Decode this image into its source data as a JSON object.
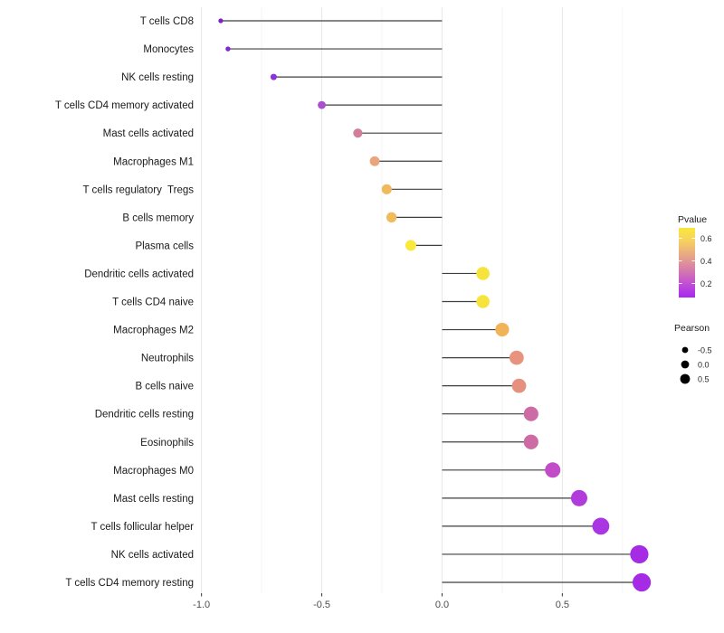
{
  "chart_data": {
    "type": "scatter",
    "variant": "lollipop",
    "title": "",
    "xlabel": "",
    "ylabel": "",
    "xlim": [
      -1.01,
      0.92
    ],
    "x_ticks": [
      -1.0,
      -0.5,
      0.0,
      0.5
    ],
    "x_tick_labels": [
      "-1.0",
      "-0.5",
      "0.0",
      "0.5"
    ],
    "minor_gridlines": [
      -0.75,
      -0.25,
      0.25,
      0.75
    ],
    "grid": "vertical-only",
    "background": "#ffffff",
    "stem_color": "#3f3f3f",
    "major_grid_color": "#e7e7e7",
    "minor_grid_color": "#f2f2f2",
    "axis_text_color": "#4d4d4d",
    "label_text_color": "#1a1a1a",
    "points": [
      {
        "label": "T cells CD8",
        "pearson": -0.92,
        "color": "#7e21c8"
      },
      {
        "label": "Monocytes",
        "pearson": -0.89,
        "color": "#8526ce"
      },
      {
        "label": "NK cells resting",
        "pearson": -0.7,
        "color": "#8c33db"
      },
      {
        "label": "T cells CD4 memory activated",
        "pearson": -0.5,
        "color": "#a94fd0"
      },
      {
        "label": "Mast cells activated",
        "pearson": -0.35,
        "color": "#d07e9b"
      },
      {
        "label": "Macrophages M1",
        "pearson": -0.28,
        "color": "#eca47c"
      },
      {
        "label": "T cells regulatory  Tregs",
        "pearson": -0.23,
        "color": "#efba5d"
      },
      {
        "label": "B cells memory",
        "pearson": -0.21,
        "color": "#f0bb5c"
      },
      {
        "label": "Plasma cells",
        "pearson": -0.13,
        "color": "#f8e93c"
      },
      {
        "label": "Dendritic cells activated",
        "pearson": 0.17,
        "color": "#f6e43c"
      },
      {
        "label": "T cells CD4 naive",
        "pearson": 0.17,
        "color": "#f6e43c"
      },
      {
        "label": "Macrophages M2",
        "pearson": 0.25,
        "color": "#f0b357"
      },
      {
        "label": "Neutrophils",
        "pearson": 0.31,
        "color": "#e8937e"
      },
      {
        "label": "B cells naive",
        "pearson": 0.32,
        "color": "#e6917f"
      },
      {
        "label": "Dendritic cells resting",
        "pearson": 0.37,
        "color": "#cc6ba4"
      },
      {
        "label": "Eosinophils",
        "pearson": 0.37,
        "color": "#cc6ba4"
      },
      {
        "label": "Macrophages M0",
        "pearson": 0.46,
        "color": "#c24bc8"
      },
      {
        "label": "Mast cells resting",
        "pearson": 0.57,
        "color": "#b13bdb"
      },
      {
        "label": "T cells follicular helper",
        "pearson": 0.66,
        "color": "#a935e3"
      },
      {
        "label": "NK cells activated",
        "pearson": 0.82,
        "color": "#a52be5"
      },
      {
        "label": "T cells CD4 memory resting",
        "pearson": 0.83,
        "color": "#a52be5"
      }
    ],
    "legend_pvalue": {
      "title": "Pvalue",
      "tick_labels": [
        "0.6",
        "0.4",
        "0.2"
      ],
      "gradient": [
        {
          "offset": 0.0,
          "color": "#f9e73b"
        },
        {
          "offset": 0.18,
          "color": "#f7d25f"
        },
        {
          "offset": 0.4,
          "color": "#e7a687"
        },
        {
          "offset": 0.62,
          "color": "#d478ae"
        },
        {
          "offset": 0.8,
          "color": "#c14fd4"
        },
        {
          "offset": 1.0,
          "color": "#a928f0"
        }
      ]
    },
    "legend_pearson": {
      "title": "Pearson",
      "entries": [
        {
          "label": "-0.5"
        },
        {
          "label": "0.0"
        },
        {
          "label": "0.5"
        }
      ],
      "dot_color": "#000000"
    }
  }
}
